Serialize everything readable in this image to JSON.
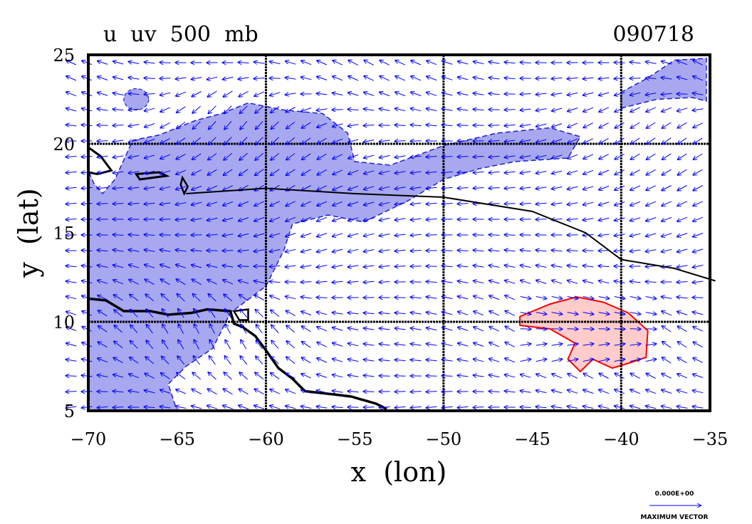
{
  "header": {
    "title": "u  uv  500  mb",
    "date": "090718"
  },
  "axes": {
    "xlabel": "x  (lon)",
    "ylabel": "y  (lat)",
    "xlim": [
      -70,
      -35
    ],
    "ylim": [
      5,
      25
    ],
    "xticks": [
      -70,
      -65,
      -60,
      -55,
      -50,
      -45,
      -40,
      -35
    ],
    "yticks": [
      5,
      10,
      15,
      20,
      25
    ],
    "grid": true
  },
  "legend": {
    "max_vector_value": "0.000E+00",
    "max_vector_label": "MAXIMUM VECTOR"
  },
  "colors": {
    "negative_fill": "#a8a8f0",
    "positive_fill": "#ffcccc",
    "positive_outline": "#ff0000",
    "negative_outline": "#2020d0",
    "vectors": "#0000ff",
    "coast": "#000000"
  },
  "map_data": {
    "negative_u_region": [
      [
        -70,
        5
      ],
      [
        -65,
        5
      ],
      [
        -65.5,
        6.5
      ],
      [
        -64.5,
        7.5
      ],
      [
        -63,
        8.5
      ],
      [
        -62,
        10.5
      ],
      [
        -60,
        12
      ],
      [
        -59,
        14
      ],
      [
        -58.5,
        15.5
      ],
      [
        -56.5,
        16
      ],
      [
        -54.5,
        15.6
      ],
      [
        -52,
        16.8
      ],
      [
        -50,
        18
      ],
      [
        -48,
        18.6
      ],
      [
        -46,
        19
      ],
      [
        -43,
        19.2
      ],
      [
        -42.3,
        20.4
      ],
      [
        -44,
        20.9
      ],
      [
        -47,
        20.6
      ],
      [
        -50,
        19.9
      ],
      [
        -53,
        18.8
      ],
      [
        -55,
        19
      ],
      [
        -55.4,
        20.6
      ],
      [
        -56.8,
        21.7
      ],
      [
        -59,
        21.9
      ],
      [
        -61,
        22.3
      ],
      [
        -62.5,
        21.7
      ],
      [
        -64,
        21.3
      ],
      [
        -66,
        20.5
      ],
      [
        -67.5,
        20.2
      ],
      [
        -68.5,
        18
      ],
      [
        -69.2,
        17.2
      ],
      [
        -69.7,
        17.8
      ],
      [
        -70,
        18.5
      ]
    ],
    "negative_u_region_ne": [
      [
        -40,
        22
      ],
      [
        -38,
        22.5
      ],
      [
        -36,
        22.6
      ],
      [
        -35.2,
        22.4
      ],
      [
        -35.2,
        24.8
      ],
      [
        -37,
        24.7
      ],
      [
        -38.5,
        23.7
      ],
      [
        -40,
        22.9
      ]
    ],
    "negative_u_blob": {
      "lon": -67.3,
      "lat": 22.5,
      "r_lon": 0.7,
      "r_lat": 0.6
    },
    "positive_u_region": [
      [
        -45.7,
        10.3
      ],
      [
        -44,
        11
      ],
      [
        -42.5,
        11.4
      ],
      [
        -41,
        11.1
      ],
      [
        -39.6,
        10.5
      ],
      [
        -38.5,
        9.5
      ],
      [
        -38.6,
        8
      ],
      [
        -39.5,
        7.7
      ],
      [
        -40.5,
        7.4
      ],
      [
        -41.6,
        7.9
      ],
      [
        -42.3,
        7.2
      ],
      [
        -43,
        7.9
      ],
      [
        -42.6,
        8.8
      ],
      [
        -44,
        9.6
      ],
      [
        -45.7,
        9.8
      ]
    ],
    "track_line": [
      [
        -64.5,
        17.2
      ],
      [
        -60,
        17.5
      ],
      [
        -55,
        17.2
      ],
      [
        -50,
        17
      ],
      [
        -45,
        16.2
      ],
      [
        -42,
        15
      ],
      [
        -40,
        13.5
      ],
      [
        -37,
        13
      ],
      [
        -34.7,
        12.3
      ]
    ],
    "coast_south_america": [
      [
        -70,
        11.3
      ],
      [
        -69,
        11.2
      ],
      [
        -68,
        10.6
      ],
      [
        -66.5,
        10.6
      ],
      [
        -65.5,
        10.4
      ],
      [
        -64.2,
        10.5
      ],
      [
        -63.3,
        10.7
      ],
      [
        -62,
        10.6
      ],
      [
        -61.8,
        9.9
      ],
      [
        -61.3,
        9.7
      ],
      [
        -60.6,
        9.2
      ],
      [
        -60,
        8.4
      ],
      [
        -59.3,
        7.4
      ],
      [
        -58.5,
        6.8
      ],
      [
        -57.8,
        6.1
      ],
      [
        -56,
        5.9
      ],
      [
        -55.2,
        5.8
      ],
      [
        -53.8,
        5.4
      ],
      [
        -53.2,
        5.1
      ]
    ],
    "coast_puerto_rico": [
      [
        -67.3,
        18.3
      ],
      [
        -66,
        18.4
      ],
      [
        -65.6,
        18.2
      ],
      [
        -67.1,
        18
      ]
    ],
    "coast_hispaniola": [
      [
        -70,
        19.8
      ],
      [
        -69.3,
        19.3
      ],
      [
        -68.7,
        18.5
      ],
      [
        -69.5,
        18.3
      ],
      [
        -70,
        18.4
      ]
    ],
    "coast_small_islands": [
      [
        [
          -61.8,
          10.6
        ],
        [
          -61,
          10.7
        ],
        [
          -61,
          10.1
        ],
        [
          -61.5,
          10.1
        ]
      ],
      [
        [
          -64.8,
          17.7
        ],
        [
          -64.6,
          17.2
        ],
        [
          -64.4,
          17.6
        ],
        [
          -64.7,
          18.1
        ]
      ]
    ]
  }
}
